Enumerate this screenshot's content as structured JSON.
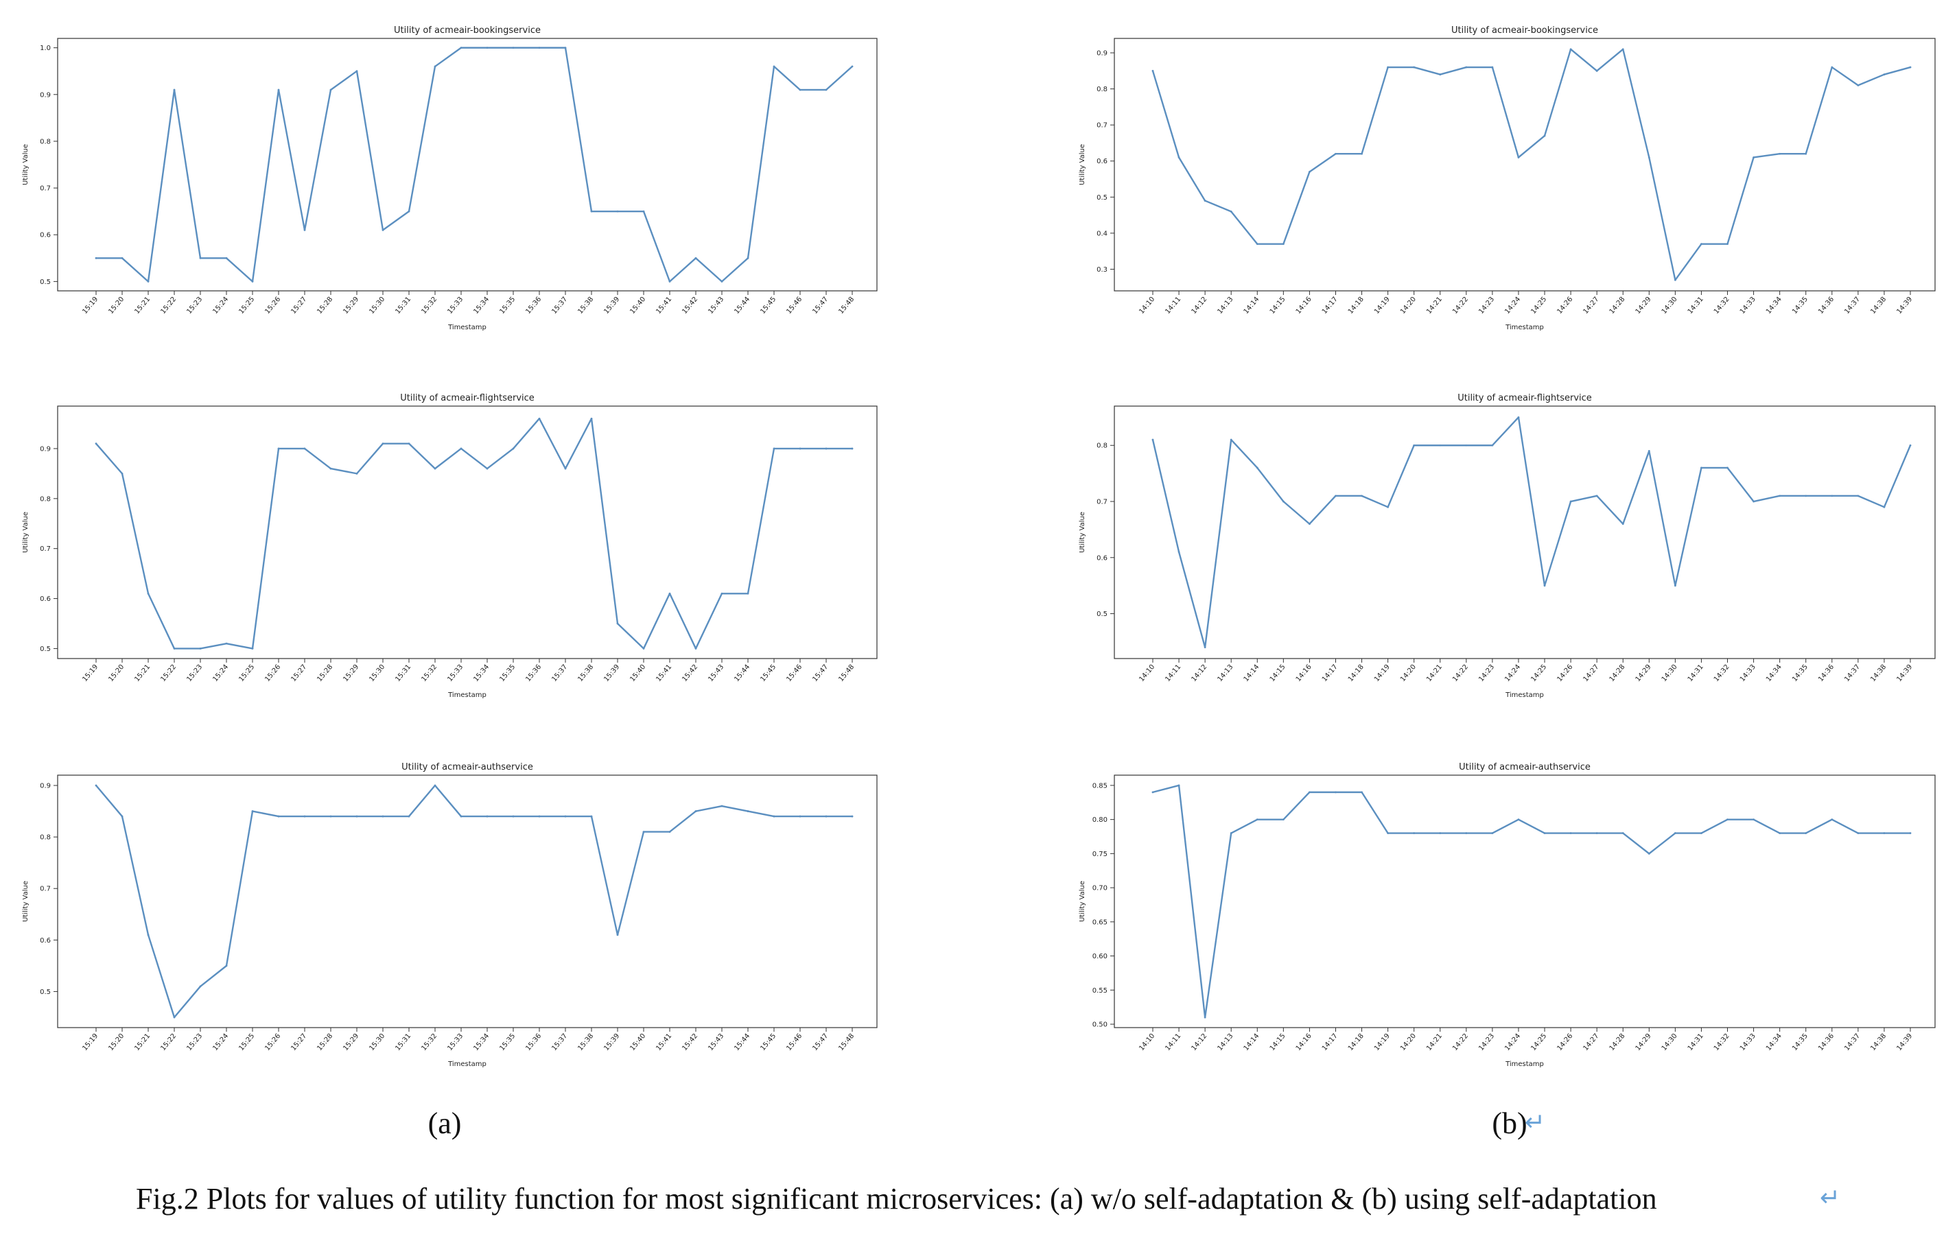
{
  "caption": "Fig.2 Plots for values of utility function for most significant microservices: (a) w/o self-adaptation & (b) using self-adaptation",
  "caption_mark": "↵",
  "panel_labels": [
    {
      "text": "(a)",
      "mark": ""
    },
    {
      "text": "(b)",
      "mark": "↵"
    }
  ],
  "colors": {
    "line": "#5b8fc0",
    "axes": "#333333"
  },
  "chart_data": [
    {
      "type": "line",
      "title": "Utility of acmeair-bookingservice",
      "xlabel": "Timestamp",
      "ylabel": "Utility Value",
      "categories": [
        "15:19",
        "15:20",
        "15:21",
        "15:22",
        "15:23",
        "15:24",
        "15:25",
        "15:26",
        "15:27",
        "15:28",
        "15:29",
        "15:30",
        "15:31",
        "15:32",
        "15:33",
        "15:34",
        "15:35",
        "15:36",
        "15:37",
        "15:38",
        "15:39",
        "15:40",
        "15:41",
        "15:42",
        "15:43",
        "15:44",
        "15:45",
        "15:46",
        "15:47",
        "15:48"
      ],
      "values": [
        0.55,
        0.55,
        0.5,
        0.91,
        0.55,
        0.55,
        0.5,
        0.91,
        0.61,
        0.91,
        0.95,
        0.61,
        0.65,
        0.96,
        1.0,
        1.0,
        1.0,
        1.0,
        1.0,
        0.65,
        0.65,
        0.65,
        0.5,
        0.55,
        0.5,
        0.55,
        0.96,
        0.91,
        0.91,
        0.96
      ],
      "ylim": [
        0.48,
        1.02
      ],
      "yticks": [
        0.5,
        0.6,
        0.7,
        0.8,
        0.9,
        1.0
      ],
      "ytick_labels": [
        "0.5",
        "0.6",
        "0.7",
        "0.8",
        "0.9",
        "1.0"
      ],
      "grid": false
    },
    {
      "type": "line",
      "title": "Utility of acmeair-bookingservice",
      "xlabel": "Timestamp",
      "ylabel": "Utility Value",
      "categories": [
        "14:10",
        "14:11",
        "14:12",
        "14:13",
        "14:14",
        "14:15",
        "14:16",
        "14:17",
        "14:18",
        "14:19",
        "14:20",
        "14:21",
        "14:22",
        "14:23",
        "14:24",
        "14:25",
        "14:26",
        "14:27",
        "14:28",
        "14:29",
        "14:30",
        "14:31",
        "14:32",
        "14:33",
        "14:34",
        "14:35",
        "14:36",
        "14:37",
        "14:38",
        "14:39"
      ],
      "values": [
        0.85,
        0.61,
        0.49,
        0.46,
        0.37,
        0.37,
        0.57,
        0.62,
        0.62,
        0.86,
        0.86,
        0.84,
        0.86,
        0.86,
        0.61,
        0.67,
        0.91,
        0.85,
        0.91,
        0.61,
        0.27,
        0.37,
        0.37,
        0.61,
        0.62,
        0.62,
        0.86,
        0.81,
        0.84,
        0.86
      ],
      "ylim": [
        0.24,
        0.94
      ],
      "yticks": [
        0.3,
        0.4,
        0.5,
        0.6,
        0.7,
        0.8,
        0.9
      ],
      "ytick_labels": [
        "0.3",
        "0.4",
        "0.5",
        "0.6",
        "0.7",
        "0.8",
        "0.9"
      ],
      "grid": false
    },
    {
      "type": "line",
      "title": "Utility of acmeair-flightservice",
      "xlabel": "Timestamp",
      "ylabel": "Utility Value",
      "categories": [
        "15:19",
        "15:20",
        "15:21",
        "15:22",
        "15:23",
        "15:24",
        "15:25",
        "15:26",
        "15:27",
        "15:28",
        "15:29",
        "15:30",
        "15:31",
        "15:32",
        "15:33",
        "15:34",
        "15:35",
        "15:36",
        "15:37",
        "15:38",
        "15:39",
        "15:40",
        "15:41",
        "15:42",
        "15:43",
        "15:44",
        "15:45",
        "15:46",
        "15:47",
        "15:48"
      ],
      "values": [
        0.91,
        0.85,
        0.61,
        0.5,
        0.5,
        0.51,
        0.5,
        0.9,
        0.9,
        0.86,
        0.85,
        0.91,
        0.91,
        0.86,
        0.9,
        0.86,
        0.9,
        0.96,
        0.86,
        0.96,
        0.55,
        0.5,
        0.61,
        0.5,
        0.61,
        0.61,
        0.9,
        0.9,
        0.9,
        0.9
      ],
      "ylim": [
        0.48,
        0.985
      ],
      "yticks": [
        0.5,
        0.6,
        0.7,
        0.8,
        0.9
      ],
      "ytick_labels": [
        "0.5",
        "0.6",
        "0.7",
        "0.8",
        "0.9"
      ],
      "grid": false
    },
    {
      "type": "line",
      "title": "Utility of acmeair-flightservice",
      "xlabel": "Timestamp",
      "ylabel": "Utility Value",
      "categories": [
        "14:10",
        "14:11",
        "14:12",
        "14:13",
        "14:14",
        "14:15",
        "14:16",
        "14:17",
        "14:18",
        "14:19",
        "14:20",
        "14:21",
        "14:22",
        "14:23",
        "14:24",
        "14:25",
        "14:26",
        "14:27",
        "14:28",
        "14:29",
        "14:30",
        "14:31",
        "14:32",
        "14:33",
        "14:34",
        "14:35",
        "14:36",
        "14:37",
        "14:38",
        "14:39"
      ],
      "values": [
        0.81,
        0.61,
        0.44,
        0.81,
        0.76,
        0.7,
        0.66,
        0.71,
        0.71,
        0.69,
        0.8,
        0.8,
        0.8,
        0.8,
        0.85,
        0.55,
        0.7,
        0.71,
        0.66,
        0.79,
        0.55,
        0.76,
        0.76,
        0.7,
        0.71,
        0.71,
        0.71,
        0.71,
        0.69,
        0.8
      ],
      "ylim": [
        0.42,
        0.87
      ],
      "yticks": [
        0.5,
        0.6,
        0.7,
        0.8
      ],
      "ytick_labels": [
        "0.5",
        "0.6",
        "0.7",
        "0.8"
      ],
      "grid": false
    },
    {
      "type": "line",
      "title": "Utility of acmeair-authservice",
      "xlabel": "Timestamp",
      "ylabel": "Utility Value",
      "categories": [
        "15:19",
        "15:20",
        "15:21",
        "15:22",
        "15:23",
        "15:24",
        "15:25",
        "15:26",
        "15:27",
        "15:28",
        "15:29",
        "15:30",
        "15:31",
        "15:32",
        "15:33",
        "15:34",
        "15:35",
        "15:36",
        "15:37",
        "15:38",
        "15:39",
        "15:40",
        "15:41",
        "15:42",
        "15:43",
        "15:44",
        "15:45",
        "15:46",
        "15:47",
        "15:48"
      ],
      "values": [
        0.9,
        0.84,
        0.61,
        0.45,
        0.51,
        0.55,
        0.85,
        0.84,
        0.84,
        0.84,
        0.84,
        0.84,
        0.84,
        0.9,
        0.84,
        0.84,
        0.84,
        0.84,
        0.84,
        0.84,
        0.61,
        0.81,
        0.81,
        0.85,
        0.86,
        0.85,
        0.84,
        0.84,
        0.84,
        0.84
      ],
      "ylim": [
        0.43,
        0.92
      ],
      "yticks": [
        0.5,
        0.6,
        0.7,
        0.8,
        0.9
      ],
      "ytick_labels": [
        "0.5",
        "0.6",
        "0.7",
        "0.8",
        "0.9"
      ],
      "grid": false
    },
    {
      "type": "line",
      "title": "Utility of acmeair-authservice",
      "xlabel": "Timestamp",
      "ylabel": "Utility Value",
      "categories": [
        "14:10",
        "14:11",
        "14:12",
        "14:13",
        "14:14",
        "14:15",
        "14:16",
        "14:17",
        "14:18",
        "14:19",
        "14:20",
        "14:21",
        "14:22",
        "14:23",
        "14:24",
        "14:25",
        "14:26",
        "14:27",
        "14:28",
        "14:29",
        "14:30",
        "14:31",
        "14:32",
        "14:33",
        "14:34",
        "14:35",
        "14:36",
        "14:37",
        "14:38",
        "14:39"
      ],
      "values": [
        0.84,
        0.85,
        0.51,
        0.78,
        0.8,
        0.8,
        0.84,
        0.84,
        0.84,
        0.78,
        0.78,
        0.78,
        0.78,
        0.78,
        0.8,
        0.78,
        0.78,
        0.78,
        0.78,
        0.75,
        0.78,
        0.78,
        0.8,
        0.8,
        0.78,
        0.78,
        0.8,
        0.78,
        0.78,
        0.78
      ],
      "ylim": [
        0.495,
        0.865
      ],
      "yticks": [
        0.5,
        0.55,
        0.6,
        0.65,
        0.7,
        0.75,
        0.8,
        0.85
      ],
      "ytick_labels": [
        "0.50",
        "0.55",
        "0.60",
        "0.65",
        "0.70",
        "0.75",
        "0.80",
        "0.85"
      ],
      "grid": false
    }
  ]
}
